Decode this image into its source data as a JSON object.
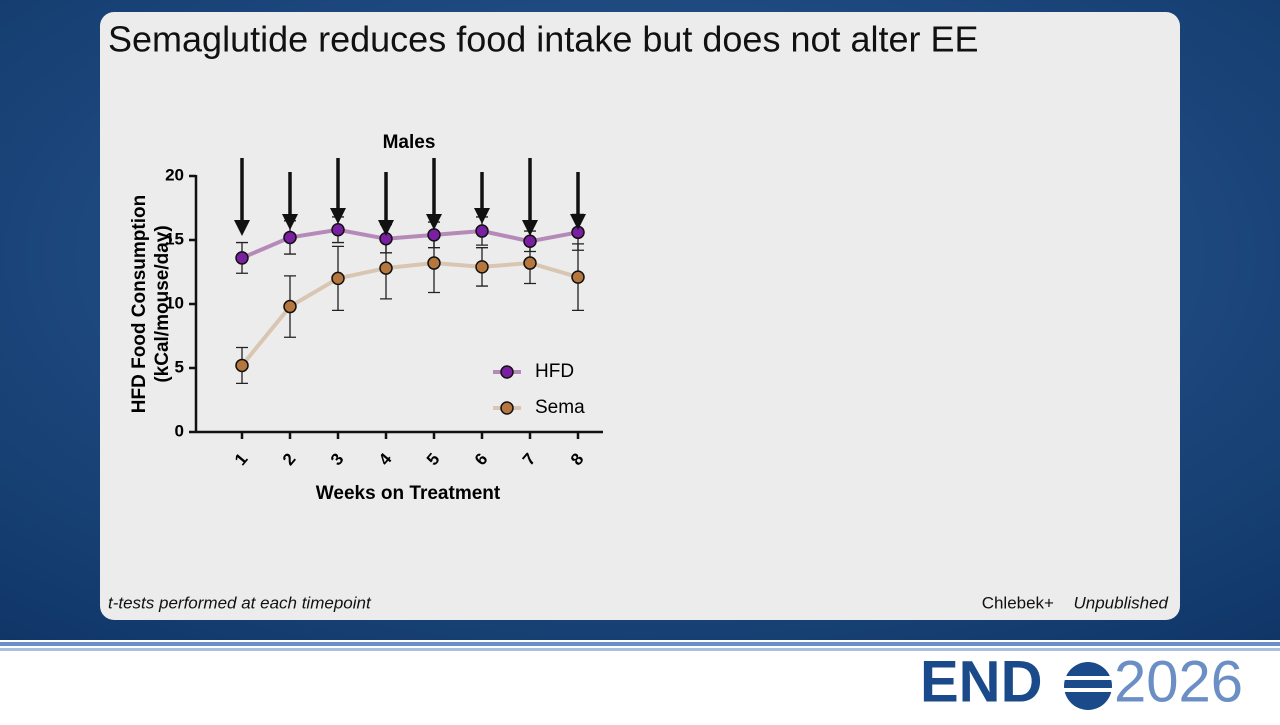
{
  "slide": {
    "title": "Semaglutide reduces food intake but does not alter EE",
    "footnote": "t-tests performed at each timepoint",
    "source": "Chlebek+",
    "source_status": "Unpublished",
    "logo_left": "END",
    "logo_right": "2026"
  },
  "chart_data": {
    "type": "line",
    "title": "Males",
    "ylabel": [
      "HFD Food Consumption",
      "(kCal/mouse/day)"
    ],
    "xlabel": "Weeks on Treatment",
    "categories": [
      "1",
      "2",
      "3",
      "4",
      "5",
      "6",
      "7",
      "8"
    ],
    "series": [
      {
        "name": "HFD",
        "color": "#7b1fa2",
        "line_color": "#b58ab9",
        "values": [
          13.6,
          15.2,
          15.8,
          15.1,
          15.4,
          15.7,
          14.9,
          15.6
        ],
        "errors": [
          1.2,
          1.3,
          1.0,
          1.1,
          1.0,
          1.1,
          0.8,
          1.4
        ]
      },
      {
        "name": "Sema",
        "color": "#b5773d",
        "line_color": "#d9c6b2",
        "values": [
          5.2,
          9.8,
          12.0,
          12.8,
          13.2,
          12.9,
          13.2,
          12.1
        ],
        "errors": [
          1.4,
          2.4,
          2.5,
          2.4,
          2.3,
          1.5,
          1.6,
          2.6
        ]
      }
    ],
    "ylim": [
      0,
      20
    ],
    "yticks": [
      0,
      5,
      10,
      15,
      20
    ],
    "legend": "lower right",
    "significance_arrows": true
  }
}
